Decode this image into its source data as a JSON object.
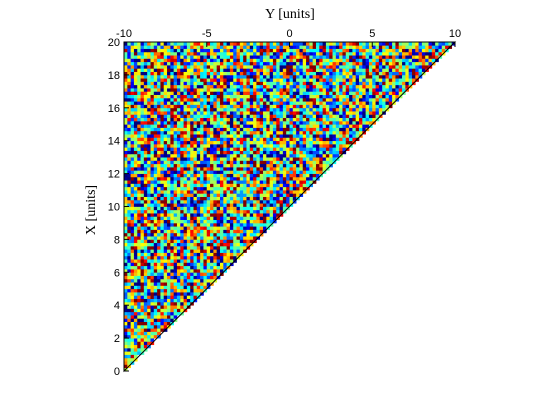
{
  "chart_data": {
    "type": "heatmap",
    "title": "",
    "xlabel": "Y [units]",
    "ylabel": "X [units]",
    "top_axis": {
      "range": [
        -10,
        10
      ],
      "ticks": [
        -10,
        -5,
        0,
        5,
        10
      ],
      "tick_labels": [
        "-10",
        "-5",
        "0",
        "5",
        "10"
      ]
    },
    "left_axis": {
      "range": [
        0,
        20
      ],
      "ticks": [
        0,
        2,
        4,
        6,
        8,
        10,
        12,
        14,
        16,
        18,
        20
      ],
      "tick_labels": [
        "0",
        "2",
        "4",
        "6",
        "8",
        "10",
        "12",
        "14",
        "16",
        "18",
        "20"
      ]
    },
    "region": "triangle",
    "region_vertices": [
      [
        -10,
        0
      ],
      [
        -10,
        20
      ],
      [
        10,
        20
      ]
    ],
    "grid_resolution": [
      100,
      100
    ],
    "value_range": [
      0,
      1
    ],
    "fill": "random noise",
    "colormap": "jet",
    "grid": false,
    "legend": "none"
  },
  "colors": {
    "background": "#ffffff",
    "axes": "#000000",
    "jet_stops": [
      "#00007f",
      "#0000ff",
      "#007fff",
      "#00ffff",
      "#7fff7f",
      "#ffff00",
      "#ff7f00",
      "#ff0000",
      "#7f0000"
    ]
  }
}
